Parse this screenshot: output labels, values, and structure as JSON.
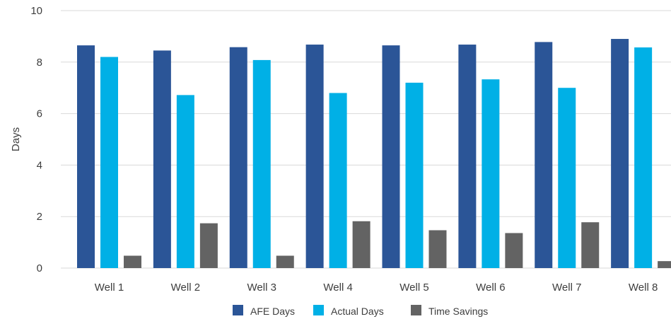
{
  "chart_data": {
    "type": "bar",
    "title": "",
    "xlabel": "",
    "ylabel": "Days",
    "ylim": [
      0,
      10
    ],
    "yticks": [
      0,
      2,
      4,
      6,
      8,
      10
    ],
    "grid": true,
    "legend_position": "bottom",
    "categories": [
      "Well 1",
      "Well 2",
      "Well 3",
      "Well 4",
      "Well 5",
      "Well 6",
      "Well 7",
      "Well 8"
    ],
    "series": [
      {
        "name": "AFE Days",
        "color": "#2b5597",
        "values": [
          8.65,
          8.45,
          8.58,
          8.68,
          8.65,
          8.68,
          8.78,
          8.9
        ]
      },
      {
        "name": "Actual Days",
        "color": "#00b0e6",
        "values": [
          8.2,
          6.72,
          8.08,
          6.8,
          7.2,
          7.33,
          7.0,
          8.57
        ]
      },
      {
        "name": "Time Savings",
        "color": "#636363",
        "values": [
          0.48,
          1.74,
          0.48,
          1.82,
          1.47,
          1.36,
          1.78,
          0.27
        ]
      }
    ]
  }
}
